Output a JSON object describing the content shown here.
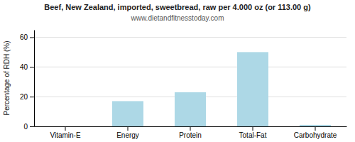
{
  "chart_data": {
    "type": "bar",
    "title": "Beef, New Zealand, imported, sweetbread, raw per 4.000 oz (or 113.00 g)",
    "subtitle": "www.dietandfitnesstoday.com",
    "categories": [
      "Vitamin-E",
      "Energy",
      "Protein",
      "Total-Fat",
      "Carbohydrate"
    ],
    "values": [
      0,
      17,
      23,
      50,
      1
    ],
    "color": "#add8e6",
    "ylabel": "Percentage of RDH (%)",
    "ylim": [
      0,
      65
    ],
    "yticks": [
      0,
      20,
      40,
      60
    ],
    "grid": true
  }
}
